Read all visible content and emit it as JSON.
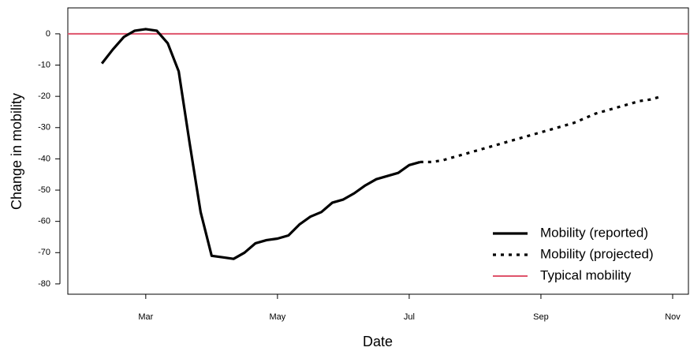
{
  "chart_data": {
    "type": "line",
    "x_label": "Date",
    "y_label": "Change in mobility",
    "categories": [
      "",
      null,
      null,
      null,
      "Mar",
      null,
      null,
      null,
      null,
      null,
      null,
      null,
      null,
      null,
      null,
      null,
      "May",
      null,
      null,
      null,
      null,
      null,
      null,
      null,
      null,
      null,
      null,
      null,
      "Jul",
      null,
      null,
      null,
      null,
      null,
      null,
      null,
      null,
      null,
      null,
      null,
      "Sep",
      null,
      null,
      null,
      null,
      null,
      null,
      null,
      null,
      null,
      null,
      null,
      "Nov",
      null
    ],
    "series": [
      {
        "name": "Mobility (reported)",
        "color": "#000000",
        "style": "solid",
        "values": [
          -9.5,
          -5,
          -1,
          1,
          1.5,
          1,
          -3,
          -12,
          -35,
          -57,
          -71,
          -71.5,
          -72,
          -70,
          -67,
          -66,
          -65.5,
          -64.5,
          -61,
          -58.5,
          -57,
          -54,
          -53,
          -51,
          -48.5,
          -46.5,
          -45.5,
          -44.5,
          -42,
          -41,
          null,
          null,
          null,
          null,
          null,
          null,
          null,
          null,
          null,
          null,
          null,
          null,
          null,
          null,
          null,
          null,
          null,
          null,
          null,
          null,
          null,
          null,
          null,
          null
        ]
      },
      {
        "name": "Mobility (projected)",
        "color": "#000000",
        "style": "dotted",
        "values": [
          null,
          null,
          null,
          null,
          null,
          null,
          null,
          null,
          null,
          null,
          null,
          null,
          null,
          null,
          null,
          null,
          null,
          null,
          null,
          null,
          null,
          null,
          null,
          null,
          null,
          null,
          null,
          null,
          null,
          -41,
          -41,
          -40.5,
          -39.5,
          -38.5,
          -37.5,
          -36.5,
          -35.5,
          -34.5,
          -33.5,
          -32.5,
          -31.5,
          -30.5,
          -29.5,
          -28.5,
          -27,
          -25.5,
          -24.5,
          -23.5,
          -22.5,
          -21.5,
          -21,
          -20,
          null,
          null
        ]
      }
    ],
    "reference_line": {
      "name": "Typical mobility",
      "value": 0,
      "color": "#df536b"
    },
    "ylim": [
      -83.3,
      8.3
    ],
    "yticks": [
      0,
      -10,
      -20,
      -30,
      -40,
      -50,
      -60,
      -70,
      -80
    ],
    "legend": "bottom-right"
  }
}
